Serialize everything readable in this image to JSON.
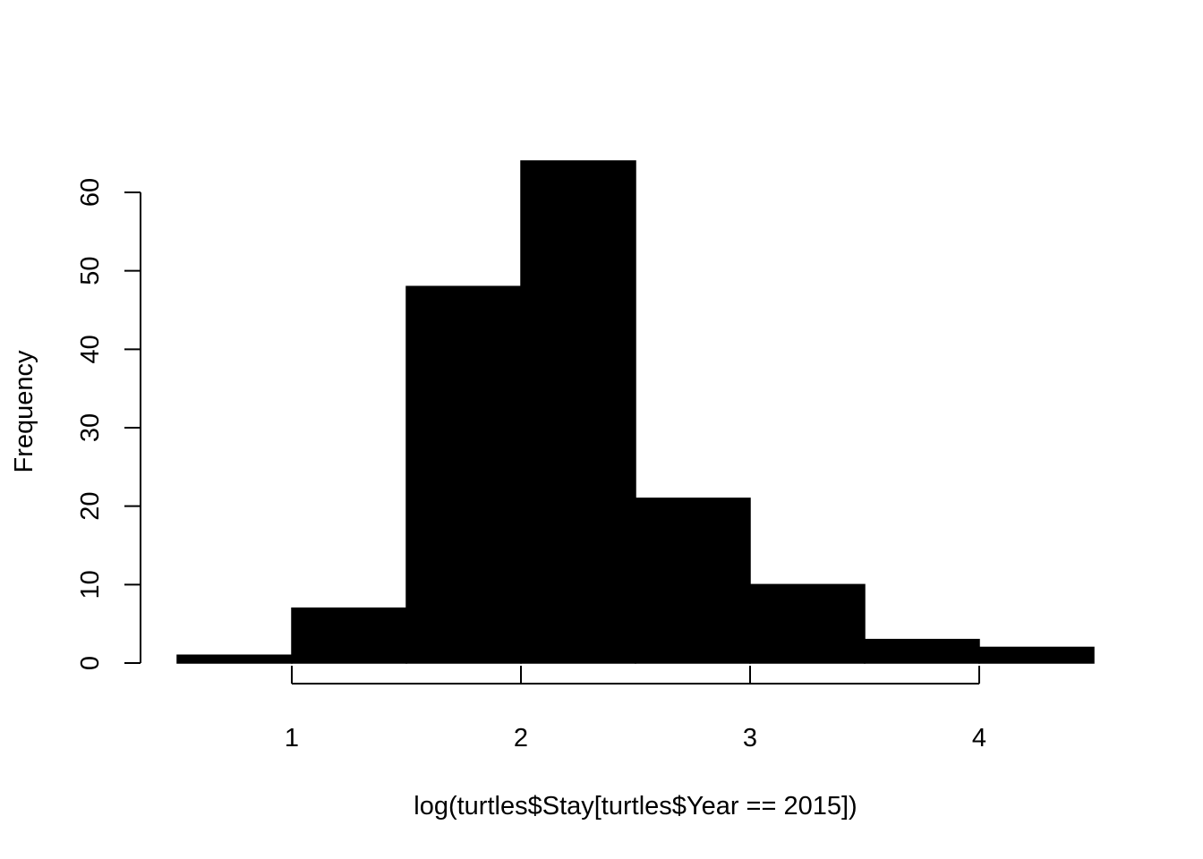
{
  "chart_data": {
    "type": "bar",
    "title": "",
    "xlabel": "log(turtles$Stay[turtles$Year == 2015])",
    "ylabel": "Frequency",
    "bins": [
      {
        "x0": 0.5,
        "x1": 1.0,
        "count": 1
      },
      {
        "x0": 1.0,
        "x1": 1.5,
        "count": 7
      },
      {
        "x0": 1.5,
        "x1": 2.0,
        "count": 48
      },
      {
        "x0": 2.0,
        "x1": 2.5,
        "count": 64
      },
      {
        "x0": 2.5,
        "x1": 3.0,
        "count": 21
      },
      {
        "x0": 3.0,
        "x1": 3.5,
        "count": 10
      },
      {
        "x0": 3.5,
        "x1": 4.0,
        "count": 3
      },
      {
        "x0": 4.0,
        "x1": 4.5,
        "count": 2
      }
    ],
    "xlim": [
      0.5,
      4.5
    ],
    "ylim": [
      0,
      64
    ],
    "xticks": [
      1,
      2,
      3,
      4
    ],
    "xtick_labels": [
      "1",
      "2",
      "3",
      "4"
    ],
    "yticks": [
      0,
      10,
      20,
      30,
      40,
      50,
      60
    ],
    "ytick_labels": [
      "0",
      "10",
      "20",
      "30",
      "40",
      "50",
      "60"
    ],
    "bar_color": "#000000",
    "grid": false,
    "legend": "none"
  }
}
